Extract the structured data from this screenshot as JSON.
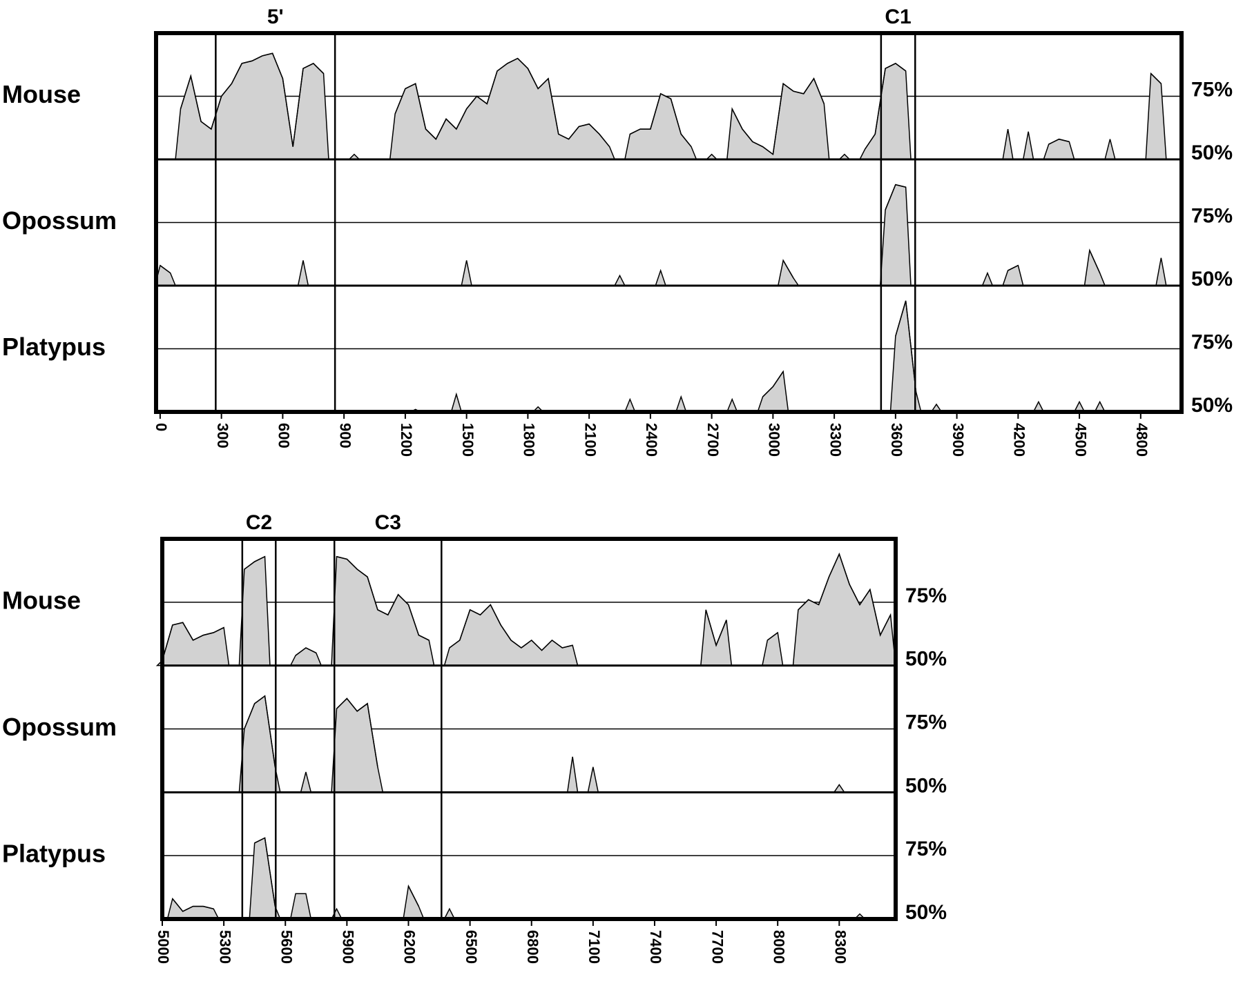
{
  "chart_data": [
    {
      "type": "area",
      "xlim": [
        -20,
        5000
      ],
      "ylim": [
        50,
        100
      ],
      "xticks": [
        0,
        300,
        600,
        900,
        1200,
        1500,
        1800,
        2100,
        2400,
        2700,
        3000,
        3300,
        3600,
        3900,
        4200,
        4500,
        4800
      ],
      "yticks": [
        {
          "value": 50,
          "label": "50%"
        },
        {
          "value": 75,
          "label": "75%"
        }
      ],
      "grid": true,
      "regions": [
        {
          "label": "5'",
          "start": 272,
          "end": 856
        },
        {
          "label": "C1",
          "start": 3529,
          "end": 3696
        }
      ],
      "x": [
        0,
        50,
        100,
        150,
        200,
        250,
        300,
        350,
        400,
        450,
        500,
        550,
        600,
        650,
        700,
        750,
        800,
        850,
        900,
        950,
        1000,
        1050,
        1100,
        1150,
        1200,
        1250,
        1300,
        1350,
        1400,
        1450,
        1500,
        1550,
        1600,
        1650,
        1700,
        1750,
        1800,
        1850,
        1900,
        1950,
        2000,
        2050,
        2100,
        2150,
        2200,
        2250,
        2300,
        2350,
        2400,
        2450,
        2500,
        2550,
        2600,
        2650,
        2700,
        2750,
        2800,
        2850,
        2900,
        2950,
        3000,
        3050,
        3100,
        3150,
        3200,
        3250,
        3300,
        3350,
        3400,
        3450,
        3500,
        3550,
        3600,
        3650,
        3700,
        3750,
        3800,
        3850,
        3900,
        3950,
        4000,
        4050,
        4100,
        4150,
        4200,
        4250,
        4300,
        4350,
        4400,
        4450,
        4500,
        4550,
        4600,
        4650,
        4700,
        4750,
        4800,
        4850,
        4900,
        4950
      ],
      "series": [
        {
          "name": "Mouse",
          "color": "#d2d2d2",
          "values": [
            null,
            null,
            70,
            83,
            65,
            62,
            75,
            80,
            88,
            89,
            91,
            92,
            82,
            55,
            86,
            88,
            84,
            null,
            null,
            52,
            null,
            null,
            null,
            68,
            78,
            80,
            62,
            58,
            66,
            62,
            70,
            75,
            72,
            85,
            88,
            90,
            86,
            78,
            82,
            60,
            58,
            63,
            64,
            60,
            55,
            null,
            60,
            62,
            62,
            76,
            74,
            60,
            55,
            null,
            52,
            null,
            70,
            62,
            57,
            55,
            52,
            80,
            77,
            76,
            82,
            72,
            null,
            52,
            null,
            54,
            60,
            86,
            88,
            85,
            null,
            null,
            null,
            null,
            null,
            null,
            null,
            null,
            null,
            62,
            null,
            61,
            null,
            56,
            58,
            57,
            null,
            null,
            null,
            58,
            null,
            null,
            null,
            84,
            80,
            null
          ]
        },
        {
          "name": "Opossum",
          "color": "#d2d2d2",
          "values": [
            58,
            55,
            null,
            null,
            null,
            null,
            null,
            null,
            null,
            null,
            null,
            null,
            null,
            null,
            60,
            null,
            null,
            null,
            null,
            null,
            null,
            null,
            null,
            null,
            null,
            null,
            null,
            null,
            null,
            null,
            60,
            null,
            null,
            null,
            null,
            null,
            null,
            null,
            null,
            null,
            null,
            null,
            null,
            null,
            null,
            54,
            null,
            null,
            null,
            56,
            null,
            null,
            null,
            null,
            null,
            null,
            null,
            null,
            null,
            null,
            null,
            60,
            53,
            null,
            null,
            null,
            null,
            null,
            null,
            null,
            null,
            80,
            90,
            89,
            null,
            null,
            null,
            null,
            null,
            null,
            null,
            55,
            null,
            56,
            58,
            null,
            null,
            null,
            null,
            null,
            null,
            64,
            55,
            null,
            null,
            null,
            null,
            null,
            61,
            null
          ]
        },
        {
          "name": "Platypus",
          "color": "#d2d2d2",
          "values": [
            null,
            null,
            null,
            null,
            null,
            null,
            null,
            null,
            null,
            null,
            null,
            null,
            null,
            null,
            null,
            null,
            null,
            null,
            null,
            null,
            null,
            null,
            null,
            null,
            null,
            51,
            null,
            null,
            null,
            57,
            null,
            null,
            null,
            null,
            null,
            null,
            null,
            52,
            null,
            null,
            null,
            null,
            null,
            null,
            null,
            null,
            55,
            null,
            null,
            null,
            null,
            56,
            null,
            null,
            null,
            null,
            55,
            null,
            null,
            56,
            60,
            66,
            null,
            null,
            null,
            null,
            null,
            null,
            null,
            null,
            null,
            null,
            80,
            94,
            58,
            null,
            53,
            null,
            null,
            null,
            null,
            null,
            null,
            null,
            null,
            null,
            54,
            null,
            null,
            null,
            54,
            null,
            54,
            null,
            null,
            null,
            null,
            null,
            null,
            null
          ]
        }
      ]
    },
    {
      "type": "area",
      "xlim": [
        5000,
        8575
      ],
      "ylim": [
        50,
        100
      ],
      "xticks": [
        5000,
        5300,
        5600,
        5900,
        6200,
        6500,
        6800,
        7100,
        7400,
        7700,
        8000,
        8300
      ],
      "yticks": [
        {
          "value": 50,
          "label": "50%"
        },
        {
          "value": 75,
          "label": "75%"
        }
      ],
      "grid": true,
      "regions": [
        {
          "label": "C2",
          "start": 5390,
          "end": 5553
        },
        {
          "label": "C3",
          "start": 5839,
          "end": 6361
        }
      ],
      "x": [
        5000,
        5050,
        5100,
        5150,
        5200,
        5250,
        5300,
        5350,
        5400,
        5450,
        5500,
        5550,
        5600,
        5650,
        5700,
        5750,
        5800,
        5850,
        5900,
        5950,
        6000,
        6050,
        6100,
        6150,
        6200,
        6250,
        6300,
        6350,
        6400,
        6450,
        6500,
        6550,
        6600,
        6650,
        6700,
        6750,
        6800,
        6850,
        6900,
        6950,
        7000,
        7050,
        7100,
        7150,
        7200,
        7250,
        7300,
        7350,
        7400,
        7450,
        7500,
        7550,
        7600,
        7650,
        7700,
        7750,
        7800,
        7850,
        7900,
        7950,
        8000,
        8050,
        8100,
        8150,
        8200,
        8250,
        8300,
        8350,
        8400,
        8450,
        8500,
        8550
      ],
      "series": [
        {
          "name": "Mouse",
          "color": "#d2d2d2",
          "values": [
            52,
            66,
            67,
            60,
            62,
            63,
            65,
            null,
            88,
            91,
            93,
            null,
            null,
            54,
            57,
            55,
            null,
            93,
            92,
            88,
            85,
            72,
            70,
            78,
            74,
            62,
            60,
            null,
            57,
            60,
            72,
            70,
            74,
            66,
            60,
            57,
            60,
            56,
            60,
            57,
            58,
            null,
            null,
            null,
            null,
            null,
            null,
            null,
            null,
            null,
            null,
            null,
            null,
            72,
            58,
            68,
            null,
            null,
            null,
            60,
            63,
            null,
            72,
            76,
            74,
            85,
            94,
            82,
            74,
            80,
            62,
            70
          ]
        },
        {
          "name": "Opossum",
          "color": "#d2d2d2",
          "values": [
            null,
            null,
            null,
            null,
            null,
            null,
            null,
            null,
            75,
            85,
            88,
            60,
            null,
            null,
            58,
            null,
            null,
            83,
            87,
            82,
            85,
            60,
            null,
            null,
            null,
            null,
            null,
            null,
            null,
            null,
            null,
            null,
            null,
            null,
            null,
            null,
            null,
            null,
            null,
            null,
            64,
            null,
            60,
            null,
            null,
            null,
            null,
            null,
            null,
            null,
            null,
            null,
            null,
            null,
            null,
            null,
            null,
            null,
            null,
            null,
            null,
            null,
            null,
            null,
            null,
            null,
            53,
            null,
            null,
            null,
            null,
            null
          ]
        },
        {
          "name": "Platypus",
          "color": "#d2d2d2",
          "values": [
            null,
            58,
            53,
            55,
            55,
            54,
            null,
            null,
            null,
            80,
            82,
            55,
            null,
            60,
            60,
            null,
            null,
            54,
            null,
            null,
            null,
            null,
            null,
            null,
            63,
            55,
            null,
            null,
            54,
            null,
            null,
            null,
            null,
            null,
            null,
            null,
            null,
            null,
            null,
            null,
            null,
            null,
            null,
            null,
            null,
            null,
            null,
            null,
            null,
            null,
            null,
            null,
            null,
            null,
            null,
            null,
            null,
            null,
            null,
            null,
            null,
            null,
            null,
            null,
            null,
            null,
            null,
            null,
            52,
            null,
            null,
            null
          ]
        }
      ]
    }
  ]
}
